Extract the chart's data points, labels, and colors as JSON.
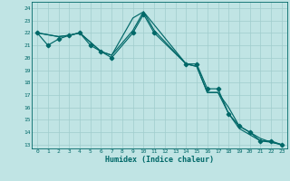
{
  "xlabel": "Humidex (Indice chaleur)",
  "bg_color": "#c0e4e4",
  "grid_color": "#a0cccc",
  "line_color": "#006868",
  "xlim": [
    -0.5,
    23.5
  ],
  "ylim": [
    12.7,
    24.5
  ],
  "yticks": [
    13,
    14,
    15,
    16,
    17,
    18,
    19,
    20,
    21,
    22,
    23,
    24
  ],
  "xticks": [
    0,
    1,
    2,
    3,
    4,
    5,
    6,
    7,
    8,
    9,
    10,
    11,
    12,
    13,
    14,
    15,
    16,
    17,
    18,
    19,
    20,
    21,
    22,
    23
  ],
  "line1_x": [
    0,
    1,
    2,
    3,
    4,
    5,
    6,
    7,
    9,
    10,
    11,
    14,
    15,
    16,
    17,
    18,
    19,
    20,
    21,
    22,
    23
  ],
  "line1_y": [
    22,
    21,
    21.5,
    21.8,
    22,
    21,
    20.5,
    20,
    22,
    23.5,
    22,
    19.5,
    19.5,
    17.5,
    17.5,
    15.5,
    14.5,
    14,
    13.3,
    13.3,
    13
  ],
  "line2_x": [
    0,
    2,
    3,
    4,
    6,
    7,
    9,
    10,
    14,
    15,
    16,
    17,
    18,
    19,
    20,
    21,
    22,
    23
  ],
  "line2_y": [
    22,
    21.7,
    21.8,
    22,
    20.5,
    20.2,
    23.2,
    23.7,
    19.5,
    19.3,
    17.2,
    17.2,
    15.5,
    14.3,
    13.8,
    13.3,
    13.2,
    13
  ],
  "line3_x": [
    0,
    2,
    3,
    4,
    6,
    7,
    9,
    10,
    11,
    14,
    15,
    16,
    17,
    18,
    19,
    20,
    21,
    22,
    23
  ],
  "line3_y": [
    22,
    21.7,
    21.8,
    22,
    20.5,
    20.2,
    22.2,
    23.7,
    22.2,
    19.5,
    19.3,
    17.2,
    17.2,
    16,
    14.5,
    14,
    13.5,
    13.2,
    13
  ],
  "marker_x": [
    0,
    1,
    2,
    3,
    4,
    5,
    6,
    7,
    9,
    10,
    11,
    14,
    15,
    16,
    17,
    18,
    19,
    20,
    21,
    22,
    23
  ],
  "marker_y": [
    22,
    21,
    21.5,
    21.8,
    22,
    21,
    20.5,
    20,
    22,
    23.5,
    22,
    19.5,
    19.5,
    17.5,
    17.5,
    15.5,
    14.5,
    14,
    13.3,
    13.3,
    13
  ]
}
